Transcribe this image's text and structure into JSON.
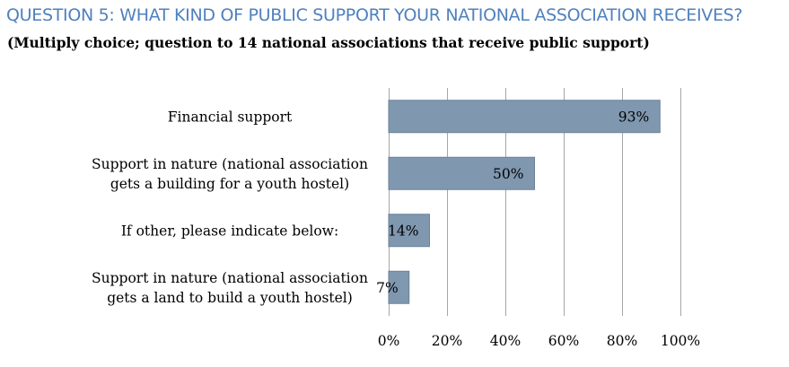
{
  "header": {
    "title": "QUESTION 5: WHAT KIND OF PUBLIC SUPPORT YOUR NATIONAL ASSOCIATION RECEIVES?",
    "subtitle": "(Multiply choice; question to 14 national associations that receive public support)"
  },
  "chart_data": {
    "type": "bar",
    "orientation": "horizontal",
    "categories": [
      [
        "Financial support"
      ],
      [
        "Support in nature (national association",
        "gets a building for a youth hostel)"
      ],
      [
        "If other, please indicate below:"
      ],
      [
        "Support in nature (national association",
        "gets a land to build a youth hostel)"
      ]
    ],
    "values": [
      93,
      50,
      14,
      7
    ],
    "data_labels": [
      "93%",
      "50%",
      "14%",
      "7%"
    ],
    "xlim": [
      0,
      100
    ],
    "x_ticks": [
      0,
      20,
      40,
      60,
      80,
      100
    ],
    "x_tick_labels": [
      "0%",
      "20%",
      "40%",
      "60%",
      "80%",
      "100%"
    ],
    "grid": true,
    "legend": "none",
    "colors": {
      "bar": "#7f97af",
      "bar_stroke": "#6b8299",
      "grid": "#a6a6a6",
      "title": "#4f81bd"
    }
  }
}
